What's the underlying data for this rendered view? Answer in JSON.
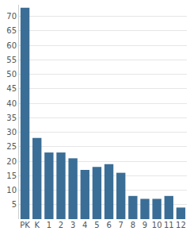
{
  "chart_data": {
    "type": "bar",
    "categories": [
      "PK",
      "K",
      "1",
      "2",
      "3",
      "4",
      "5",
      "6",
      "7",
      "8",
      "9",
      "10",
      "11",
      "12"
    ],
    "values": [
      73,
      28,
      23,
      23,
      21,
      17,
      18,
      19,
      16,
      8,
      7,
      7,
      8,
      4
    ],
    "color": "#3b6e96",
    "ylim": [
      0,
      74
    ],
    "yticks": [
      5,
      10,
      15,
      20,
      25,
      30,
      35,
      40,
      45,
      50,
      55,
      60,
      65,
      70
    ],
    "grid": true
  }
}
